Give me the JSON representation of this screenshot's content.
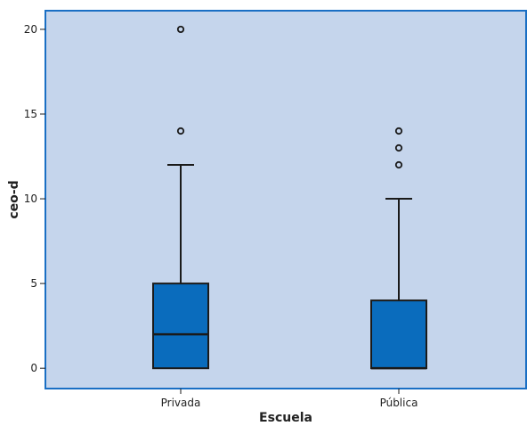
{
  "chart_data": {
    "type": "boxplot",
    "xlabel": "Escuela",
    "ylabel": "ceo-d",
    "ylim": [
      -1.2,
      21.1
    ],
    "yticks": [
      0,
      5,
      10,
      15,
      20
    ],
    "ytick_labels": [
      "0",
      "5",
      "10",
      "15",
      "20"
    ],
    "categories": [
      "Privada",
      "Pública"
    ],
    "boxes": [
      {
        "category": "Privada",
        "whisker_low": 0,
        "q1": 0,
        "median": 2,
        "q3": 5,
        "whisker_high": 12,
        "outliers": [
          14,
          20
        ]
      },
      {
        "category": "Pública",
        "whisker_low": 0,
        "q1": 0,
        "median": 0,
        "q3": 4,
        "whisker_high": 10,
        "outliers": [
          12,
          13,
          14
        ]
      }
    ],
    "grid": false,
    "legend": "none"
  },
  "colors": {
    "plot_background": "#c5d5ec",
    "frame": "#1a6fc4",
    "box_fill": "#0a6cbd",
    "line": "#1a1a1a"
  }
}
